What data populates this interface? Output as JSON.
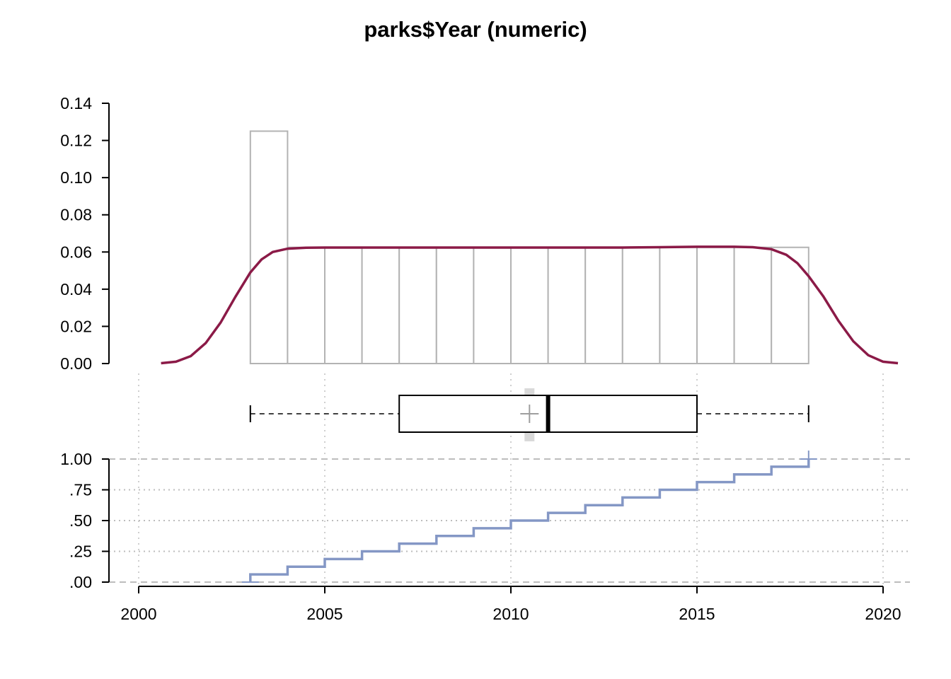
{
  "chart_data": {
    "type": "histogram-boxplot-ecdf",
    "title": "parks$Year (numeric)",
    "x_ticks": [
      "2000",
      "2005",
      "2010",
      "2015",
      "2020"
    ],
    "xlim": [
      2000,
      2020
    ],
    "histogram": {
      "ylim": [
        0,
        0.14
      ],
      "y_ticks": [
        "0.00",
        "0.02",
        "0.04",
        "0.06",
        "0.08",
        "0.10",
        "0.12",
        "0.14"
      ],
      "bins": [
        {
          "from": 2003,
          "to": 2004,
          "density": 0.125
        },
        {
          "from": 2004,
          "to": 2005,
          "density": 0.0625
        },
        {
          "from": 2005,
          "to": 2006,
          "density": 0.0625
        },
        {
          "from": 2006,
          "to": 2007,
          "density": 0.0625
        },
        {
          "from": 2007,
          "to": 2008,
          "density": 0.0625
        },
        {
          "from": 2008,
          "to": 2009,
          "density": 0.0625
        },
        {
          "from": 2009,
          "to": 2010,
          "density": 0.0625
        },
        {
          "from": 2010,
          "to": 2011,
          "density": 0.0625
        },
        {
          "from": 2011,
          "to": 2012,
          "density": 0.0625
        },
        {
          "from": 2012,
          "to": 2013,
          "density": 0.0625
        },
        {
          "from": 2013,
          "to": 2014,
          "density": 0.0625
        },
        {
          "from": 2014,
          "to": 2015,
          "density": 0.0625
        },
        {
          "from": 2015,
          "to": 2016,
          "density": 0.0625
        },
        {
          "from": 2016,
          "to": 2017,
          "density": 0.0625
        },
        {
          "from": 2017,
          "to": 2018,
          "density": 0.0625
        }
      ],
      "density_curve": {
        "x": [
          2000.6,
          2001.0,
          2001.4,
          2001.8,
          2002.2,
          2002.6,
          2003.0,
          2003.3,
          2003.6,
          2004.0,
          2004.5,
          2005,
          2006,
          2007,
          2008,
          2009,
          2010,
          2011,
          2012,
          2013,
          2014,
          2015,
          2016,
          2016.5,
          2017.0,
          2017.4,
          2017.7,
          2018.0,
          2018.4,
          2018.8,
          2019.2,
          2019.6,
          2020.0,
          2020.4
        ],
        "y": [
          0.0002,
          0.001,
          0.004,
          0.011,
          0.022,
          0.036,
          0.049,
          0.056,
          0.06,
          0.0618,
          0.0623,
          0.0624,
          0.0624,
          0.0624,
          0.0624,
          0.0624,
          0.0624,
          0.0624,
          0.0624,
          0.0624,
          0.0626,
          0.0628,
          0.0628,
          0.0626,
          0.0615,
          0.0585,
          0.054,
          0.047,
          0.036,
          0.023,
          0.012,
          0.0045,
          0.001,
          0.0002
        ]
      }
    },
    "boxplot": {
      "min": 2003,
      "q1": 2007,
      "median": 2011,
      "q3": 2015,
      "max": 2018,
      "mean": 2010.5
    },
    "ecdf": {
      "ylim": [
        0,
        1
      ],
      "y_ticks": [
        ".00",
        ".25",
        ".50",
        ".75",
        "1.00"
      ],
      "steps_x": [
        2003,
        2004,
        2005,
        2006,
        2007,
        2008,
        2009,
        2010,
        2011,
        2012,
        2013,
        2014,
        2015,
        2016,
        2017,
        2018
      ],
      "steps_y": [
        0.0625,
        0.125,
        0.1875,
        0.25,
        0.3125,
        0.375,
        0.4375,
        0.5,
        0.5625,
        0.625,
        0.6875,
        0.75,
        0.8125,
        0.875,
        0.9375,
        1.0
      ]
    },
    "colors": {
      "density": "#8b1a47",
      "ecdf": "#8497c5",
      "hist_border": "#b3b3b3",
      "mean_band": "#d9d9d9",
      "mean_marker": "#9e9e9e"
    }
  }
}
